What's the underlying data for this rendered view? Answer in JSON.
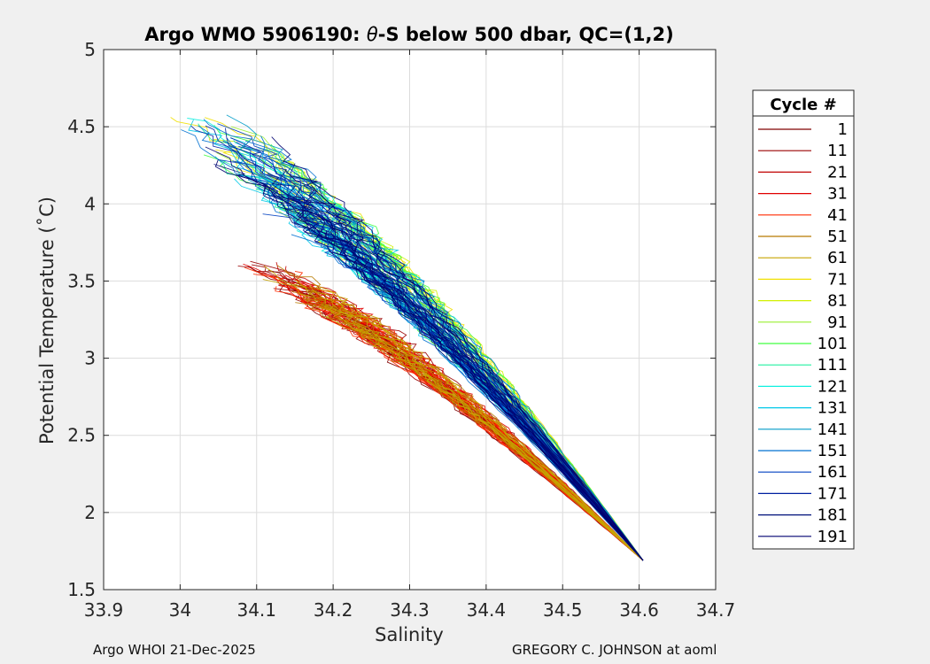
{
  "chart_data": {
    "type": "line",
    "title_prefix": "Argo WMO 5906190: ",
    "title_symbol": "θ",
    "title_suffix": "-S below 500 dbar,  QC=(1,2)",
    "xlabel": "Salinity",
    "ylabel": "Potential Temperature (˚C)",
    "xlim": [
      33.9,
      34.7
    ],
    "ylim": [
      1.5,
      5
    ],
    "xticks": [
      33.9,
      34.0,
      34.1,
      34.2,
      34.3,
      34.4,
      34.5,
      34.6,
      34.7
    ],
    "xtick_labels": [
      "33.9",
      "34",
      "34.1",
      "34.2",
      "34.3",
      "34.4",
      "34.5",
      "34.6",
      "34.7"
    ],
    "yticks": [
      1.5,
      2,
      2.5,
      3,
      3.5,
      4,
      4.5,
      5
    ],
    "ytick_labels": [
      "1.5",
      "2",
      "2.5",
      "3",
      "3.5",
      "4",
      "4.5",
      "5"
    ],
    "grid": true,
    "legend_title": "Cycle #",
    "legend": [
      {
        "label": "1",
        "color": "#800000"
      },
      {
        "label": "11",
        "color": "#9a0000"
      },
      {
        "label": "21",
        "color": "#c00000"
      },
      {
        "label": "31",
        "color": "#e00000"
      },
      {
        "label": "41",
        "color": "#ff2a00"
      },
      {
        "label": "51",
        "color": "#b87a00"
      },
      {
        "label": "61",
        "color": "#c8a400"
      },
      {
        "label": "71",
        "color": "#f0e000"
      },
      {
        "label": "81",
        "color": "#d2f000"
      },
      {
        "label": "91",
        "color": "#9aef30"
      },
      {
        "label": "101",
        "color": "#40ff40"
      },
      {
        "label": "111",
        "color": "#20f0a0"
      },
      {
        "label": "121",
        "color": "#10f0e0"
      },
      {
        "label": "131",
        "color": "#00c8e8"
      },
      {
        "label": "141",
        "color": "#009cc8"
      },
      {
        "label": "151",
        "color": "#0070d0"
      },
      {
        "label": "161",
        "color": "#0040c0"
      },
      {
        "label": "171",
        "color": "#0020a0"
      },
      {
        "label": "181",
        "color": "#00107a"
      },
      {
        "label": "191",
        "color": "#000070"
      }
    ],
    "series_envelope": {
      "end_point": [
        34.605,
        1.69
      ],
      "red_cycles_start": {
        "s": [
          34.09,
          34.26
        ],
        "theta": [
          3.25,
          3.62
        ]
      },
      "blue_cycles_start": {
        "s": [
          33.96,
          34.28
        ],
        "theta": [
          3.6,
          4.58
        ]
      }
    }
  },
  "footer": {
    "left": "Argo WHOI 21-Dec-2025",
    "right": "GREGORY C. JOHNSON at aoml"
  }
}
